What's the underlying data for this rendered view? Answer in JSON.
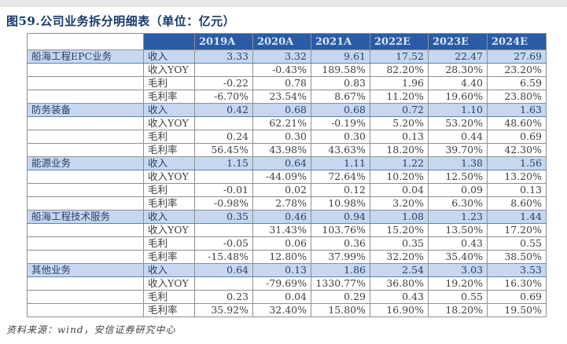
{
  "title": "图59.公司业务拆分明细表（单位：亿元）",
  "source": "资料来源：wind，安信证券研究中心",
  "colors": {
    "header_bg": "#2a5ba6",
    "header_text": "#dbe5f5",
    "band_bg": "#c6d7ef",
    "title_text": "#17396b",
    "grid_line": "#8f8f8f",
    "band_border": "#5b83b8",
    "top_strip": "#e8e8e8"
  },
  "table": {
    "years": [
      "2019A",
      "2020A",
      "2021A",
      "2022E",
      "2023E",
      "2024E"
    ],
    "segments": [
      {
        "name": "船海工程EPC业务",
        "rows": [
          {
            "label": "收入",
            "values": [
              "3.33",
              "3.32",
              "9.61",
              "17.52",
              "22.47",
              "27.69"
            ]
          },
          {
            "label": "收入YOY",
            "values": [
              "",
              "-0.43%",
              "189.58%",
              "82.20%",
              "28.30%",
              "23.20%"
            ]
          },
          {
            "label": "毛利",
            "values": [
              "-0.22",
              "0.78",
              "0.83",
              "1.96",
              "4.40",
              "6.59"
            ]
          },
          {
            "label": "毛利率",
            "values": [
              "-6.70%",
              "23.54%",
              "8.67%",
              "11.20%",
              "19.60%",
              "23.80%"
            ]
          }
        ]
      },
      {
        "name": "防务装备",
        "rows": [
          {
            "label": "收入",
            "values": [
              "0.42",
              "0.68",
              "0.68",
              "0.72",
              "1.10",
              "1.63"
            ]
          },
          {
            "label": "收入YOY",
            "values": [
              "",
              "62.21%",
              "-0.19%",
              "5.20%",
              "53.20%",
              "48.60%"
            ]
          },
          {
            "label": "毛利",
            "values": [
              "0.24",
              "0.30",
              "0.30",
              "0.13",
              "0.44",
              "0.69"
            ]
          },
          {
            "label": "毛利率",
            "values": [
              "56.45%",
              "43.98%",
              "43.63%",
              "18.20%",
              "39.70%",
              "42.30%"
            ]
          }
        ]
      },
      {
        "name": "能源业务",
        "rows": [
          {
            "label": "收入",
            "values": [
              "1.15",
              "0.64",
              "1.11",
              "1.22",
              "1.38",
              "1.56"
            ]
          },
          {
            "label": "收入YOY",
            "values": [
              "",
              "-44.09%",
              "72.64%",
              "10.20%",
              "12.50%",
              "13.20%"
            ]
          },
          {
            "label": "毛利",
            "values": [
              "-0.01",
              "0.02",
              "0.12",
              "0.04",
              "0.09",
              "0.13"
            ]
          },
          {
            "label": "毛利率",
            "values": [
              "-0.98%",
              "2.78%",
              "10.98%",
              "3.20%",
              "6.30%",
              "8.60%"
            ]
          }
        ]
      },
      {
        "name": "船海工程技术服务",
        "rows": [
          {
            "label": "收入",
            "values": [
              "0.35",
              "0.46",
              "0.94",
              "1.08",
              "1.23",
              "1.44"
            ]
          },
          {
            "label": "收入YOY",
            "values": [
              "",
              "31.43%",
              "103.76%",
              "15.20%",
              "13.50%",
              "17.20%"
            ]
          },
          {
            "label": "毛利",
            "values": [
              "-0.05",
              "0.06",
              "0.36",
              "0.35",
              "0.43",
              "0.55"
            ]
          },
          {
            "label": "毛利率",
            "values": [
              "-15.48%",
              "12.80%",
              "37.99%",
              "32.20%",
              "35.40%",
              "38.50%"
            ]
          }
        ]
      },
      {
        "name": "其他业务",
        "rows": [
          {
            "label": "收入",
            "values": [
              "0.64",
              "0.13",
              "1.86",
              "2.54",
              "3.03",
              "3.53"
            ]
          },
          {
            "label": "收入YOY",
            "values": [
              "",
              "-79.69%",
              "1330.77%",
              "36.80%",
              "19.20%",
              "16.30%"
            ]
          },
          {
            "label": "毛利",
            "values": [
              "0.23",
              "0.04",
              "0.29",
              "0.43",
              "0.55",
              "0.69"
            ]
          },
          {
            "label": "毛利率",
            "values": [
              "35.92%",
              "32.40%",
              "15.80%",
              "16.90%",
              "18.20%",
              "19.50%"
            ]
          }
        ]
      }
    ]
  }
}
